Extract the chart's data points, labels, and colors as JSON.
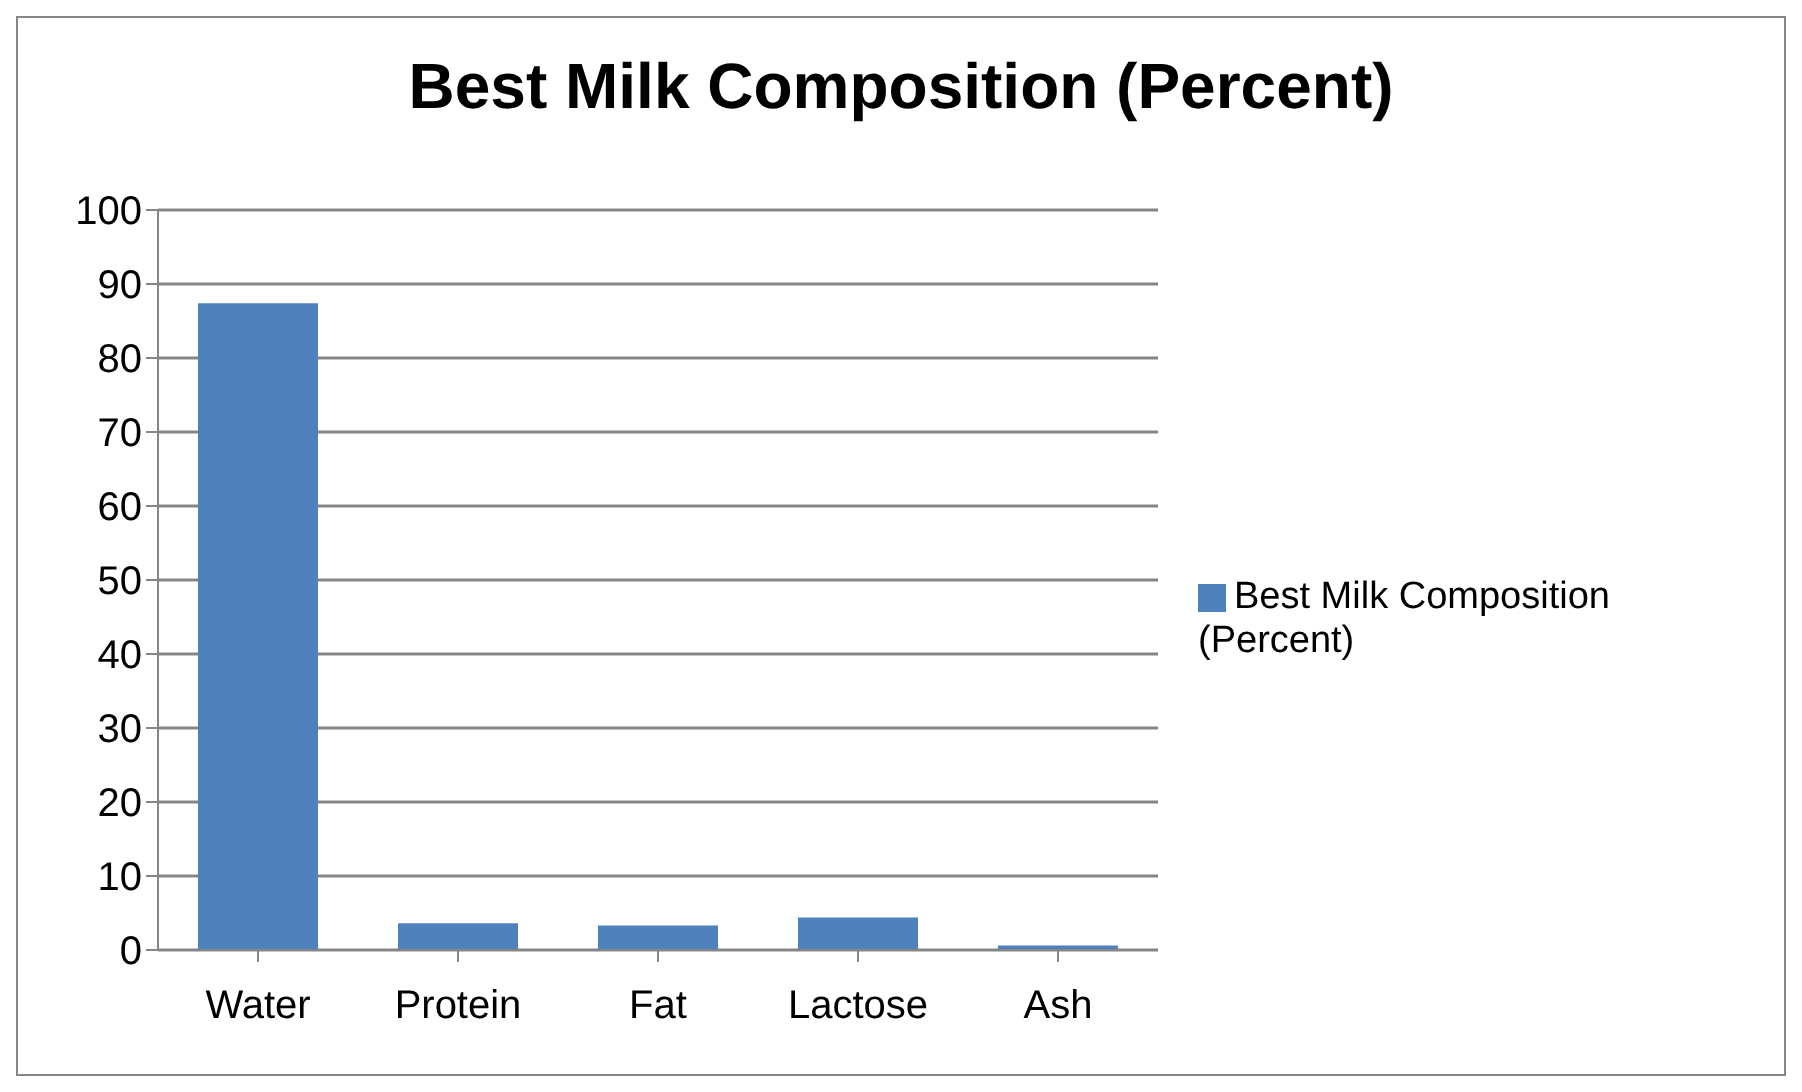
{
  "chart_data": {
    "type": "bar",
    "title": "Best Milk Composition (Percent)",
    "categories": [
      "Water",
      "Protein",
      "Fat",
      "Lactose",
      "Ash"
    ],
    "series": [
      {
        "name": "Best Milk Composition (Percent)",
        "color": "#4f81bd",
        "values": [
          87.4,
          3.6,
          3.3,
          4.4,
          0.6
        ]
      }
    ],
    "ylim": [
      0,
      100
    ],
    "yticks": [
      0,
      10,
      20,
      30,
      40,
      50,
      60,
      70,
      80,
      90,
      100
    ],
    "grid": "y",
    "legend": "right"
  }
}
